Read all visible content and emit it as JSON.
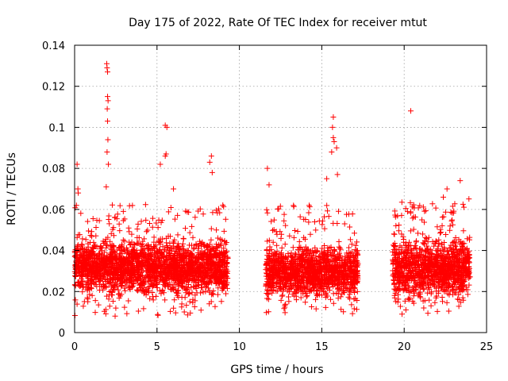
{
  "chart_data": {
    "type": "scatter",
    "title": "Day 175 of 2022, Rate Of TEC Index for receiver mtut",
    "xlabel": "GPS time / hours",
    "ylabel": "ROTI / TECUs",
    "xlim": [
      0,
      25
    ],
    "ylim": [
      0,
      0.14
    ],
    "xticks": [
      "0",
      "5",
      "10",
      "15",
      "20",
      "25"
    ],
    "yticks": [
      "0",
      "0.02",
      "0.04",
      "0.06",
      "0.08",
      "0.1",
      "0.12",
      "0.14"
    ],
    "grid": true,
    "marker": "+",
    "color": "#ff0000",
    "segments": [
      {
        "x": [
          0,
          9.3
        ],
        "typical": [
          0.018,
          0.045
        ],
        "spread": [
          0.008,
          0.063
        ]
      },
      {
        "x": [
          11.6,
          17.2
        ],
        "typical": [
          0.016,
          0.042
        ],
        "spread": [
          0.009,
          0.062
        ]
      },
      {
        "x": [
          19.3,
          24.0
        ],
        "typical": [
          0.016,
          0.045
        ],
        "spread": [
          0.008,
          0.066
        ]
      }
    ],
    "peaks": [
      {
        "x": 0.15,
        "y": 0.082
      },
      {
        "x": 0.2,
        "y": 0.07
      },
      {
        "x": 0.22,
        "y": 0.068
      },
      {
        "x": 1.95,
        "y": 0.131
      },
      {
        "x": 1.97,
        "y": 0.129
      },
      {
        "x": 2.0,
        "y": 0.127
      },
      {
        "x": 2.0,
        "y": 0.115
      },
      {
        "x": 2.03,
        "y": 0.113
      },
      {
        "x": 1.98,
        "y": 0.109
      },
      {
        "x": 2.0,
        "y": 0.103
      },
      {
        "x": 2.02,
        "y": 0.094
      },
      {
        "x": 1.97,
        "y": 0.088
      },
      {
        "x": 2.05,
        "y": 0.082
      },
      {
        "x": 1.92,
        "y": 0.071
      },
      {
        "x": 5.5,
        "y": 0.101
      },
      {
        "x": 5.6,
        "y": 0.1
      },
      {
        "x": 5.55,
        "y": 0.087
      },
      {
        "x": 5.5,
        "y": 0.086
      },
      {
        "x": 5.2,
        "y": 0.082
      },
      {
        "x": 6.0,
        "y": 0.07
      },
      {
        "x": 8.3,
        "y": 0.086
      },
      {
        "x": 8.2,
        "y": 0.083
      },
      {
        "x": 8.35,
        "y": 0.078
      },
      {
        "x": 11.7,
        "y": 0.08
      },
      {
        "x": 11.8,
        "y": 0.072
      },
      {
        "x": 15.7,
        "y": 0.105
      },
      {
        "x": 15.65,
        "y": 0.1
      },
      {
        "x": 15.7,
        "y": 0.095
      },
      {
        "x": 15.75,
        "y": 0.093
      },
      {
        "x": 15.6,
        "y": 0.088
      },
      {
        "x": 15.9,
        "y": 0.09
      },
      {
        "x": 15.95,
        "y": 0.077
      },
      {
        "x": 15.3,
        "y": 0.075
      },
      {
        "x": 20.4,
        "y": 0.108
      },
      {
        "x": 23.4,
        "y": 0.074
      },
      {
        "x": 22.6,
        "y": 0.07
      }
    ]
  }
}
